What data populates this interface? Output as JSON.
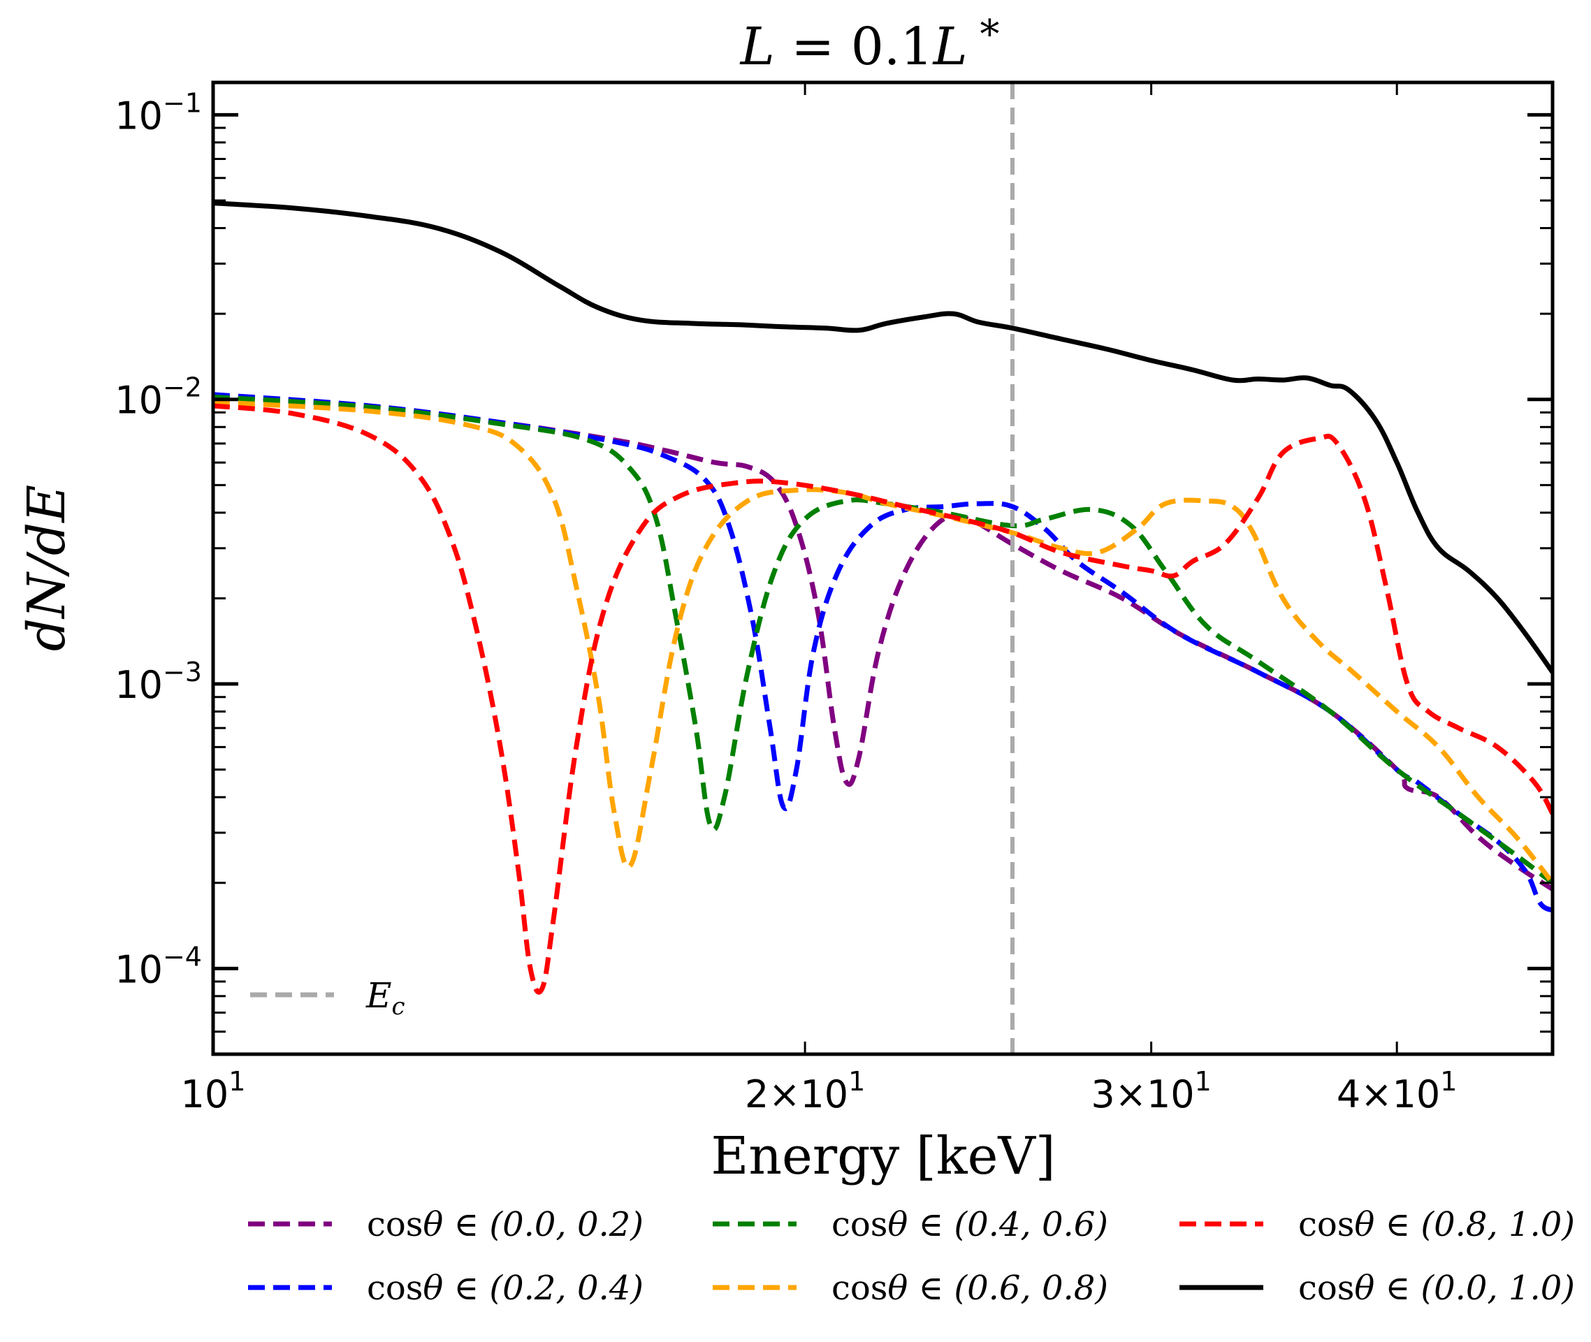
{
  "chart_data": {
    "type": "line",
    "title": "L = 0.1L *",
    "xlabel": "Energy [keV]",
    "ylabel": "dN/dE",
    "xscale": "log",
    "yscale": "log",
    "xlim": [
      10,
      48
    ],
    "ylim": [
      5e-05,
      0.13
    ],
    "x_ticks": [
      {
        "value": 10,
        "base": "10",
        "exp": "1",
        "mant": ""
      },
      {
        "value": 20,
        "base": "10",
        "exp": "1",
        "mant": "2×"
      },
      {
        "value": 30,
        "base": "10",
        "exp": "1",
        "mant": "3×"
      },
      {
        "value": 40,
        "base": "10",
        "exp": "1",
        "mant": "4×"
      }
    ],
    "y_ticks": [
      {
        "value": 0.1,
        "base": "10",
        "exp": "−1"
      },
      {
        "value": 0.01,
        "base": "10",
        "exp": "−2"
      },
      {
        "value": 0.001,
        "base": "10",
        "exp": "−3"
      },
      {
        "value": 0.0001,
        "base": "10",
        "exp": "−4"
      }
    ],
    "vline": {
      "x": 25.5,
      "label": "E",
      "label_sub": "c",
      "color": "#aaaaaa"
    },
    "series": [
      {
        "name": "cosθ ∈ (0.0, 0.2)",
        "color": "#800080",
        "dashed": true,
        "points": [
          [
            10,
            0.0103
          ],
          [
            12,
            0.0094
          ],
          [
            14,
            0.0083
          ],
          [
            16,
            0.0072
          ],
          [
            17,
            0.0066
          ],
          [
            18,
            0.006
          ],
          [
            18.7,
            0.0058
          ],
          [
            19.3,
            0.0051
          ],
          [
            19.8,
            0.0036
          ],
          [
            20.3,
            0.0018
          ],
          [
            20.7,
            0.0007
          ],
          [
            21.0,
            0.00045
          ],
          [
            21.3,
            0.00055
          ],
          [
            21.8,
            0.0013
          ],
          [
            22.5,
            0.0025
          ],
          [
            23.4,
            0.0037
          ],
          [
            24.2,
            0.0038
          ],
          [
            25.5,
            0.0031
          ],
          [
            27,
            0.0025
          ],
          [
            29,
            0.002
          ],
          [
            31,
            0.0015
          ],
          [
            34,
            0.0011
          ],
          [
            37,
            0.0008
          ],
          [
            40,
            0.0005
          ],
          [
            40.5,
            0.00043
          ],
          [
            42,
            0.0004
          ],
          [
            44,
            0.00029
          ],
          [
            46,
            0.00023
          ],
          [
            48,
            0.00019
          ]
        ]
      },
      {
        "name": "cosθ ∈ (0.2, 0.4)",
        "color": "#0000ff",
        "dashed": true,
        "points": [
          [
            10,
            0.0104
          ],
          [
            12,
            0.0095
          ],
          [
            14,
            0.0083
          ],
          [
            16,
            0.0071
          ],
          [
            17,
            0.0063
          ],
          [
            17.8,
            0.0052
          ],
          [
            18.3,
            0.0036
          ],
          [
            18.8,
            0.0017
          ],
          [
            19.2,
            0.0007
          ],
          [
            19.5,
            0.00037
          ],
          [
            19.8,
            0.0005
          ],
          [
            20.2,
            0.0013
          ],
          [
            20.8,
            0.0025
          ],
          [
            21.6,
            0.0036
          ],
          [
            22.5,
            0.0041
          ],
          [
            23.5,
            0.0042
          ],
          [
            24.5,
            0.0043
          ],
          [
            25.5,
            0.0042
          ],
          [
            26.5,
            0.0035
          ],
          [
            27.5,
            0.0027
          ],
          [
            29,
            0.0021
          ],
          [
            31,
            0.0015
          ],
          [
            34,
            0.0011
          ],
          [
            37,
            0.0008
          ],
          [
            40,
            0.0005
          ],
          [
            41,
            0.00045
          ],
          [
            43,
            0.00035
          ],
          [
            45,
            0.00028
          ],
          [
            46.5,
            0.00022
          ],
          [
            47.3,
            0.00017
          ],
          [
            48,
            0.00016
          ]
        ]
      },
      {
        "name": "cosθ ∈ (0.4, 0.6)",
        "color": "#008000",
        "dashed": true,
        "points": [
          [
            10,
            0.0102
          ],
          [
            12,
            0.0094
          ],
          [
            14,
            0.0082
          ],
          [
            15.5,
            0.0072
          ],
          [
            16.3,
            0.0057
          ],
          [
            16.8,
            0.0038
          ],
          [
            17.2,
            0.0017
          ],
          [
            17.6,
            0.0007
          ],
          [
            17.9,
            0.00032
          ],
          [
            18.2,
            0.0004
          ],
          [
            18.7,
            0.0011
          ],
          [
            19.3,
            0.0025
          ],
          [
            20,
            0.0038
          ],
          [
            21,
            0.0044
          ],
          [
            22,
            0.0043
          ],
          [
            23.5,
            0.004
          ],
          [
            25.5,
            0.0036
          ],
          [
            26.5,
            0.0038
          ],
          [
            28,
            0.0041
          ],
          [
            29.3,
            0.0036
          ],
          [
            30.5,
            0.0025
          ],
          [
            32,
            0.0016
          ],
          [
            34,
            0.0012
          ],
          [
            37,
            0.0008
          ],
          [
            40,
            0.0005
          ],
          [
            43,
            0.00035
          ],
          [
            46,
            0.00025
          ],
          [
            48,
            0.0002
          ]
        ]
      },
      {
        "name": "cosθ ∈ (0.6, 0.8)",
        "color": "#ffa500",
        "dashed": true,
        "points": [
          [
            10,
            0.0098
          ],
          [
            12,
            0.0091
          ],
          [
            13.5,
            0.0081
          ],
          [
            14.3,
            0.0068
          ],
          [
            14.9,
            0.0045
          ],
          [
            15.3,
            0.0022
          ],
          [
            15.7,
            0.0009
          ],
          [
            16.0,
            0.00035
          ],
          [
            16.3,
            0.00023
          ],
          [
            16.7,
            0.0005
          ],
          [
            17.2,
            0.0015
          ],
          [
            17.8,
            0.003
          ],
          [
            18.7,
            0.0044
          ],
          [
            19.8,
            0.0048
          ],
          [
            21,
            0.0047
          ],
          [
            22,
            0.0043
          ],
          [
            23.5,
            0.0039
          ],
          [
            25.5,
            0.0034
          ],
          [
            27,
            0.003
          ],
          [
            28.2,
            0.0029
          ],
          [
            29.5,
            0.0035
          ],
          [
            30.5,
            0.0043
          ],
          [
            32,
            0.0044
          ],
          [
            33,
            0.0042
          ],
          [
            33.8,
            0.0034
          ],
          [
            35,
            0.002
          ],
          [
            36.5,
            0.0014
          ],
          [
            38,
            0.0011
          ],
          [
            40,
            0.0008
          ],
          [
            42,
            0.0006
          ],
          [
            44,
            0.0004
          ],
          [
            46,
            0.00029
          ],
          [
            48,
            0.0002
          ]
        ]
      },
      {
        "name": "cosθ ∈ (0.8, 1.0)",
        "color": "#ff0000",
        "dashed": true,
        "points": [
          [
            10,
            0.0095
          ],
          [
            11,
            0.0089
          ],
          [
            12,
            0.0075
          ],
          [
            12.7,
            0.0055
          ],
          [
            13.2,
            0.0033
          ],
          [
            13.6,
            0.0016
          ],
          [
            14.0,
            0.0006
          ],
          [
            14.3,
            0.00022
          ],
          [
            14.5,
            0.0001
          ],
          [
            14.7,
            8.5e-05
          ],
          [
            14.9,
            0.00015
          ],
          [
            15.3,
            0.0006
          ],
          [
            15.8,
            0.0018
          ],
          [
            16.5,
            0.0035
          ],
          [
            17.3,
            0.0046
          ],
          [
            18.5,
            0.0051
          ],
          [
            19.5,
            0.0051
          ],
          [
            21,
            0.0047
          ],
          [
            22.5,
            0.0042
          ],
          [
            24,
            0.0038
          ],
          [
            25.5,
            0.0034
          ],
          [
            27,
            0.0029
          ],
          [
            29,
            0.0026
          ],
          [
            30,
            0.0025
          ],
          [
            30.8,
            0.0024
          ],
          [
            31.5,
            0.0027
          ],
          [
            32.7,
            0.0031
          ],
          [
            34,
            0.0045
          ],
          [
            35,
            0.0065
          ],
          [
            36.5,
            0.0073
          ],
          [
            37.3,
            0.007
          ],
          [
            38.5,
            0.0045
          ],
          [
            39.5,
            0.0022
          ],
          [
            40.5,
            0.001
          ],
          [
            41.5,
            0.0008
          ],
          [
            43,
            0.0007
          ],
          [
            45,
            0.0006
          ],
          [
            47,
            0.00045
          ],
          [
            48,
            0.00035
          ]
        ]
      },
      {
        "name": "cosθ ∈ (0.0, 1.0)",
        "color": "#000000",
        "dashed": false,
        "points": [
          [
            10,
            0.049
          ],
          [
            11,
            0.047
          ],
          [
            12,
            0.044
          ],
          [
            13,
            0.04
          ],
          [
            14,
            0.033
          ],
          [
            15,
            0.025
          ],
          [
            15.7,
            0.021
          ],
          [
            16.5,
            0.019
          ],
          [
            17.5,
            0.0185
          ],
          [
            18.5,
            0.0183
          ],
          [
            19.5,
            0.018
          ],
          [
            20.5,
            0.0178
          ],
          [
            21.3,
            0.0175
          ],
          [
            22,
            0.0185
          ],
          [
            23,
            0.0195
          ],
          [
            23.8,
            0.02
          ],
          [
            24.5,
            0.0187
          ],
          [
            25.5,
            0.0178
          ],
          [
            27,
            0.0163
          ],
          [
            28.5,
            0.015
          ],
          [
            30,
            0.0137
          ],
          [
            31.5,
            0.0127
          ],
          [
            33,
            0.0117
          ],
          [
            34,
            0.0118
          ],
          [
            35,
            0.0117
          ],
          [
            36,
            0.0119
          ],
          [
            37,
            0.0112
          ],
          [
            37.8,
            0.0108
          ],
          [
            39,
            0.0085
          ],
          [
            40,
            0.006
          ],
          [
            41,
            0.004
          ],
          [
            42,
            0.003
          ],
          [
            43.5,
            0.0025
          ],
          [
            45,
            0.002
          ],
          [
            46.5,
            0.0015
          ],
          [
            48,
            0.0011
          ]
        ]
      }
    ],
    "legend": {
      "inner": "upper-left-bottom",
      "entries": [
        {
          "name": "cosθ ∈ (0.0, 0.2)",
          "color": "#800080",
          "dashed": true,
          "left": "cos",
          "rest": "θ ∈ (0.0, 0.2)"
        },
        {
          "name": "cosθ ∈ (0.2, 0.4)",
          "color": "#0000ff",
          "dashed": true,
          "left": "cos",
          "rest": "θ ∈ (0.2, 0.4)"
        },
        {
          "name": "cosθ ∈ (0.4, 0.6)",
          "color": "#008000",
          "dashed": true,
          "left": "cos",
          "rest": "θ ∈ (0.4, 0.6)"
        },
        {
          "name": "cosθ ∈ (0.6, 0.8)",
          "color": "#ffa500",
          "dashed": true,
          "left": "cos",
          "rest": "θ ∈ (0.6, 0.8)"
        },
        {
          "name": "cosθ ∈ (0.8, 1.0)",
          "color": "#ff0000",
          "dashed": true,
          "left": "cos",
          "rest": "θ ∈ (0.8, 1.0)"
        },
        {
          "name": "cosθ ∈ (0.0, 1.0)",
          "color": "#000000",
          "dashed": false,
          "left": "cos",
          "rest": "θ ∈ (0.0, 1.0)"
        }
      ]
    }
  },
  "title_parts": {
    "l": "L",
    "eq": " = 0.1",
    "l2": "L",
    "star": " *"
  },
  "xlabel_text": "Energy [keV]",
  "ylabel_text": "dN/dE"
}
